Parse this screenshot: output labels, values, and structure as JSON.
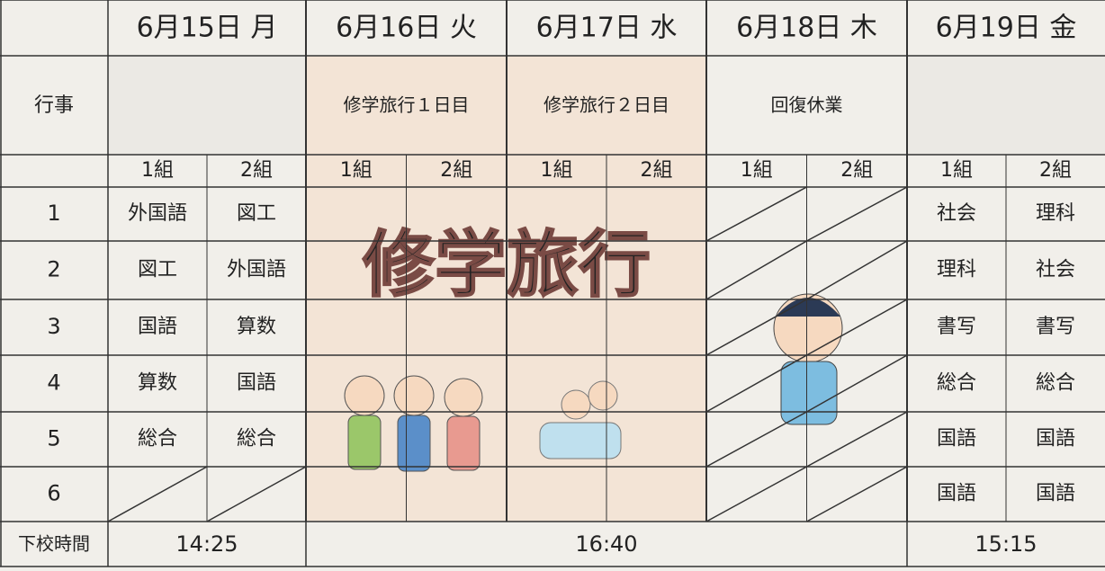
{
  "header": {
    "corner": null,
    "days": [
      "6月15日 月",
      "6月16日 火",
      "6月17日 水",
      "6月18日 木",
      "6月19日 金"
    ]
  },
  "events": {
    "label": "行事",
    "items": [
      null,
      "修学旅行１日目",
      "修学旅行２日目",
      "回復休業",
      null
    ]
  },
  "groups": [
    "1組",
    "2組"
  ],
  "periods": [
    {
      "label": "1",
      "cells": [
        "外国語",
        "図工",
        null,
        null,
        null,
        null,
        null,
        null,
        "社会",
        "理科"
      ]
    },
    {
      "label": "2",
      "cells": [
        "図工",
        "外国語",
        null,
        null,
        null,
        null,
        null,
        null,
        "理科",
        "社会"
      ]
    },
    {
      "label": "3",
      "cells": [
        "国語",
        "算数",
        null,
        null,
        null,
        null,
        null,
        null,
        "書写",
        "書写"
      ]
    },
    {
      "label": "4",
      "cells": [
        "算数",
        "国語",
        null,
        null,
        null,
        null,
        null,
        null,
        "総合",
        "総合"
      ]
    },
    {
      "label": "5",
      "cells": [
        "総合",
        "総合",
        null,
        null,
        null,
        null,
        null,
        null,
        "国語",
        "国語"
      ]
    },
    {
      "label": "6",
      "cells": [
        null,
        null,
        null,
        null,
        null,
        null,
        null,
        null,
        "国語",
        "国語"
      ]
    }
  ],
  "banner": "修学旅行",
  "dismissal": {
    "label": "下校時間",
    "times": [
      "14:25",
      "16:40",
      "15:15"
    ]
  }
}
